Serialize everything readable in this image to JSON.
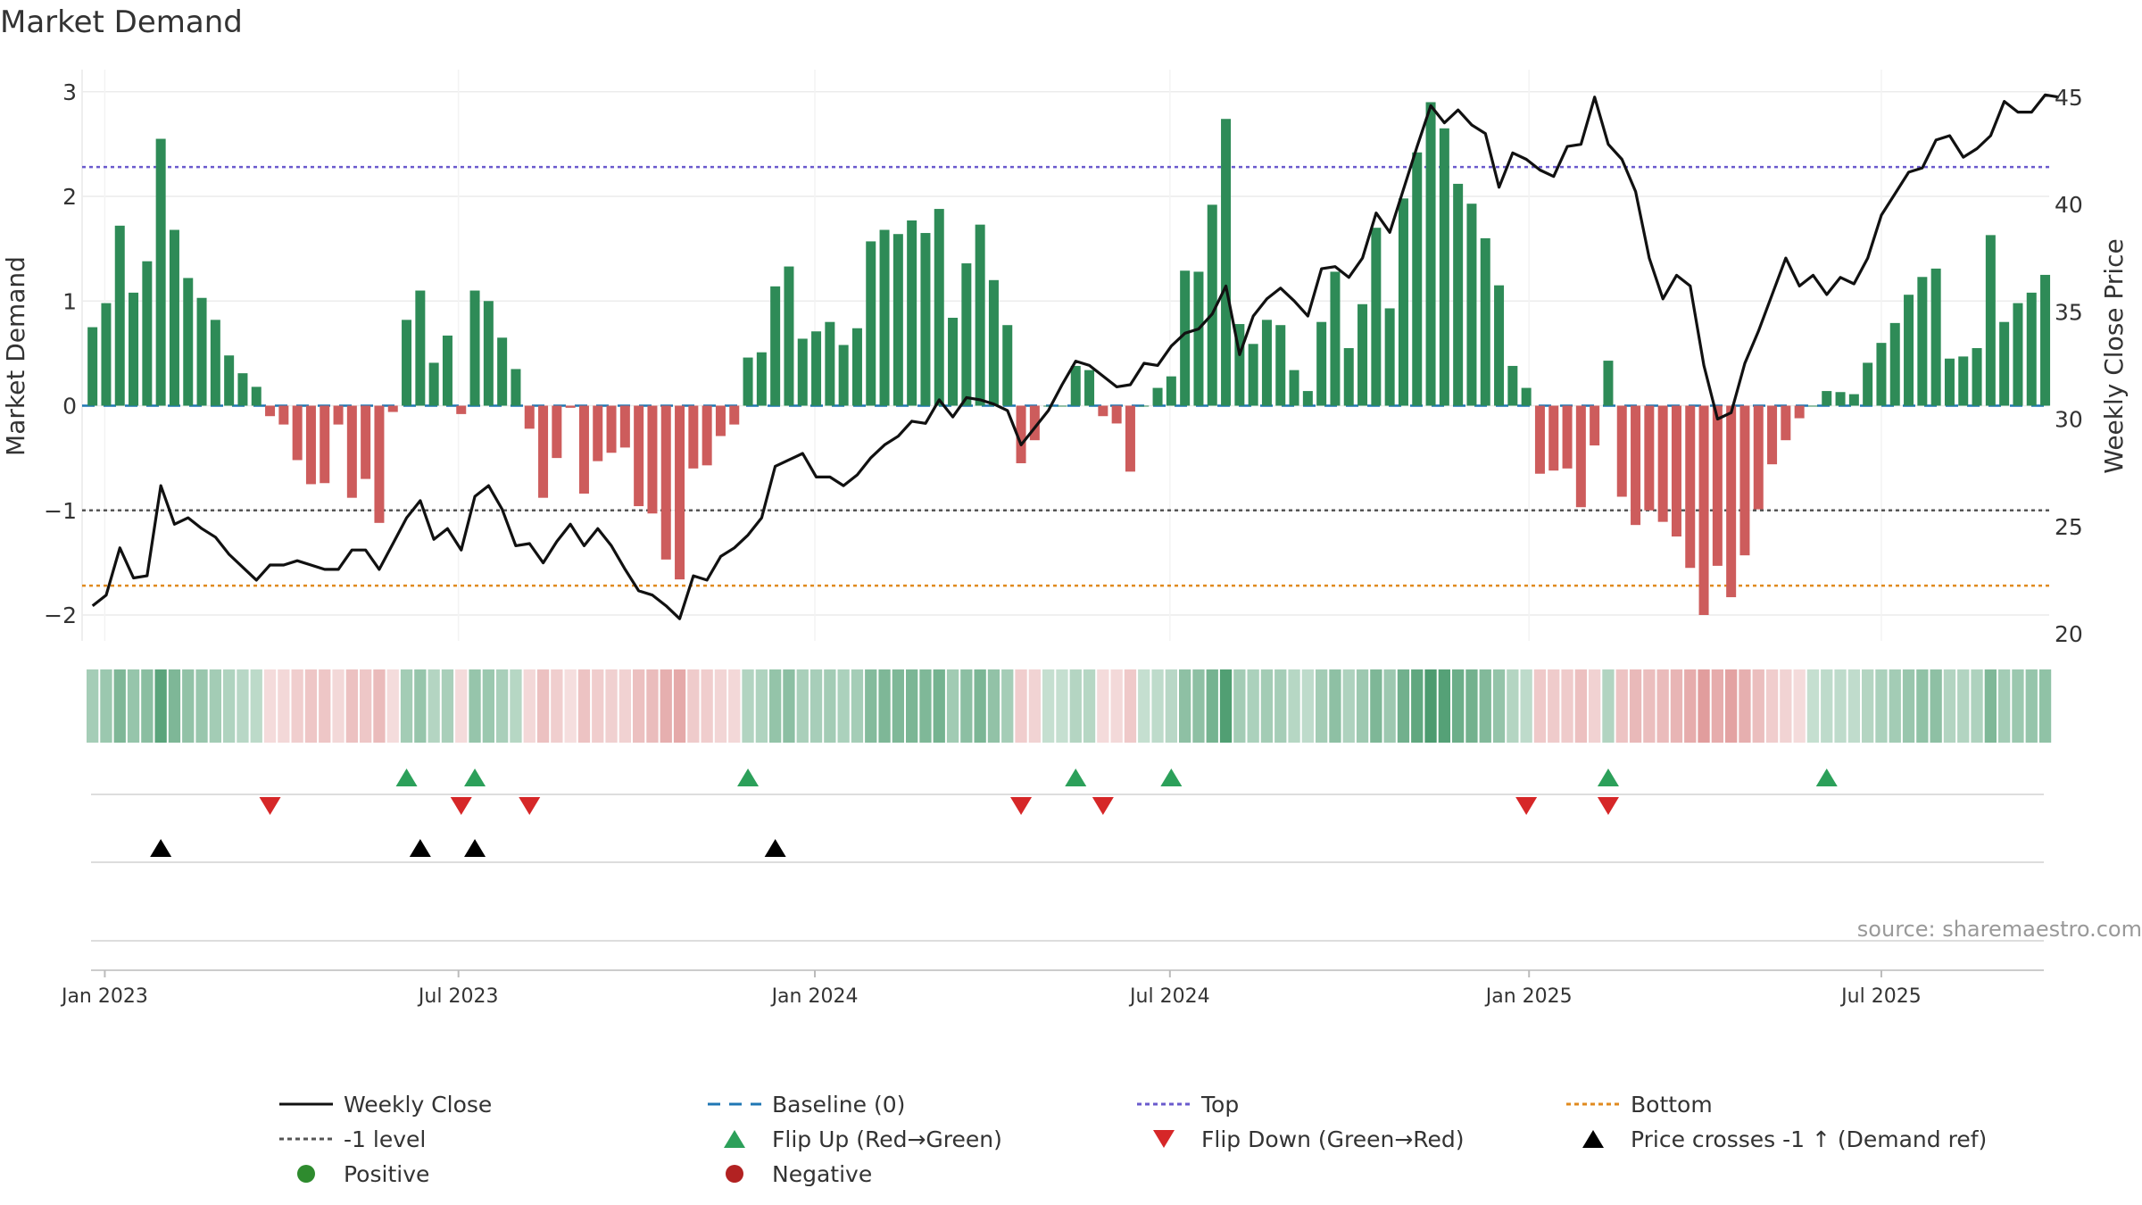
{
  "chart_data": {
    "type": "bar+line",
    "title": "Market Demand",
    "ylabel_left": "Market Demand",
    "ylabel_right": "Weekly Close Price",
    "source": "source: sharemaestro.com",
    "ylim_left": [
      -2.2,
      3.2
    ],
    "ylim_right": [
      20,
      45.5
    ],
    "yticks_left": [
      "3",
      "2",
      "1",
      "0",
      "−1",
      "−2"
    ],
    "yticks_right": [
      "45",
      "40",
      "35",
      "30",
      "25",
      "20"
    ],
    "x_ticks": [
      "Jan 2023",
      "Jul 2023",
      "Jan 2024",
      "Jul 2024",
      "Jan 2025",
      "Jul 2025"
    ],
    "x_tick_weeks": [
      1.4,
      27.3,
      53.4,
      79.4,
      105.7,
      131.5
    ],
    "reference_lines": {
      "top": 2.28,
      "minus_one": -1.0,
      "bottom": -1.72,
      "baseline": 0
    },
    "colors": {
      "positive": "#2e8b57",
      "negative": "#cd5c5c",
      "close": "#111111",
      "baseline": "#1f77b4",
      "top": "#6a5acd",
      "bottom": "#e08a1e",
      "minus_one": "#555555",
      "flip_up": "#2ca05a",
      "flip_down": "#d62728",
      "cross": "#000000",
      "legend_pos": "#2e8b2e",
      "legend_neg": "#b22222"
    },
    "demand": [
      0.75,
      0.98,
      1.72,
      1.08,
      1.38,
      2.55,
      1.68,
      1.22,
      1.03,
      0.82,
      0.48,
      0.31,
      0.18,
      -0.1,
      -0.18,
      -0.52,
      -0.75,
      -0.74,
      -0.18,
      -0.88,
      -0.7,
      -1.12,
      -0.06,
      0.82,
      1.1,
      0.41,
      0.67,
      -0.08,
      1.1,
      1.0,
      0.65,
      0.35,
      -0.22,
      -0.88,
      -0.5,
      -0.02,
      -0.84,
      -0.53,
      -0.45,
      -0.4,
      -0.96,
      -1.03,
      -1.47,
      -1.66,
      -0.6,
      -0.57,
      -0.29,
      -0.18,
      0.46,
      0.51,
      1.14,
      1.33,
      0.64,
      0.71,
      0.8,
      0.58,
      0.74,
      1.57,
      1.68,
      1.64,
      1.77,
      1.65,
      1.88,
      0.84,
      1.36,
      1.73,
      1.2,
      0.77,
      -0.55,
      -0.33,
      0.0,
      0.0,
      0.38,
      0.34,
      -0.1,
      -0.17,
      -0.63,
      0.0,
      0.17,
      0.28,
      1.29,
      1.28,
      1.92,
      2.74,
      0.78,
      0.59,
      0.82,
      0.77,
      0.34,
      0.14,
      0.8,
      1.28,
      0.55,
      0.97,
      1.7,
      0.93,
      1.98,
      2.42,
      2.9,
      2.65,
      2.12,
      1.93,
      1.6,
      1.15,
      0.38,
      0.17,
      -0.65,
      -0.62,
      -0.6,
      -0.97,
      -0.38,
      0.43,
      -0.87,
      -1.14,
      -1.0,
      -1.11,
      -1.25,
      -1.55,
      -2.0,
      -1.53,
      -1.83,
      -1.43,
      -0.99,
      -0.56,
      -0.33,
      -0.12,
      0.0,
      0.14,
      0.13,
      0.11,
      0.41,
      0.6,
      0.79,
      1.06,
      1.23,
      1.31,
      0.45,
      0.47,
      0.55,
      1.63,
      0.8,
      0.98,
      1.08,
      1.25
    ],
    "close": [
      21.3,
      21.8,
      24.0,
      22.6,
      22.7,
      26.9,
      25.1,
      25.4,
      24.9,
      24.5,
      23.7,
      23.1,
      22.5,
      23.2,
      23.2,
      23.4,
      23.2,
      23.0,
      23.0,
      23.9,
      23.9,
      23.0,
      24.2,
      25.4,
      26.2,
      24.4,
      24.9,
      23.9,
      26.4,
      26.9,
      25.8,
      24.1,
      24.2,
      23.3,
      24.3,
      25.1,
      24.1,
      24.9,
      24.1,
      23.0,
      22.0,
      21.8,
      21.3,
      20.7,
      22.7,
      22.5,
      23.6,
      24.0,
      24.6,
      25.4,
      27.8,
      28.1,
      28.4,
      27.3,
      27.3,
      26.9,
      27.4,
      28.2,
      28.8,
      29.2,
      29.9,
      29.8,
      30.9,
      30.1,
      31.0,
      30.9,
      30.7,
      30.4,
      28.8,
      29.6,
      30.4,
      31.6,
      32.7,
      32.5,
      32.0,
      31.5,
      31.6,
      32.6,
      32.5,
      33.4,
      34.0,
      34.2,
      34.9,
      36.2,
      33.0,
      34.8,
      35.6,
      36.1,
      35.5,
      34.8,
      37.0,
      37.1,
      36.6,
      37.5,
      39.6,
      38.7,
      40.7,
      42.7,
      44.6,
      43.8,
      44.4,
      43.7,
      43.3,
      40.8,
      42.4,
      42.1,
      41.6,
      41.3,
      42.7,
      42.8,
      45.0,
      42.8,
      42.1,
      40.6,
      37.5,
      35.6,
      36.7,
      36.2,
      32.5,
      30.0,
      30.3,
      32.6,
      34.1,
      35.8,
      37.5,
      36.2,
      36.7,
      35.8,
      36.6,
      36.3,
      37.5,
      39.5,
      40.5,
      41.5,
      41.7,
      43.0,
      43.2,
      42.2,
      42.6,
      43.2,
      44.8,
      44.3,
      44.3,
      45.1,
      45.0
    ],
    "flip_up": [
      23,
      28,
      48,
      72,
      79,
      111,
      127
    ],
    "flip_down": [
      13,
      27,
      32,
      68,
      74,
      105,
      111
    ],
    "price_cross": [
      5,
      24,
      28,
      50
    ],
    "legend": [
      {
        "label": "Weekly Close",
        "marker": "line-solid",
        "color": "#111111"
      },
      {
        "label": "Baseline (0)",
        "marker": "line-dash",
        "color": "#1f77b4"
      },
      {
        "label": "Top",
        "marker": "line-dot",
        "color": "#6a5acd"
      },
      {
        "label": "Bottom",
        "marker": "line-dot",
        "color": "#e08a1e"
      },
      {
        "label": "-1 level",
        "marker": "line-dot",
        "color": "#555555"
      },
      {
        "label": "Flip Up (Red→Green)",
        "marker": "triangle-up",
        "color": "#2ca05a"
      },
      {
        "label": "Flip Down (Green→Red)",
        "marker": "triangle-down",
        "color": "#d62728"
      },
      {
        "label": "Price crosses -1 ↑ (Demand ref)",
        "marker": "triangle-up",
        "color": "#000000"
      },
      {
        "label": "Positive",
        "marker": "circle",
        "color": "#2e8b2e"
      },
      {
        "label": "Negative",
        "marker": "circle",
        "color": "#b22222"
      }
    ]
  }
}
